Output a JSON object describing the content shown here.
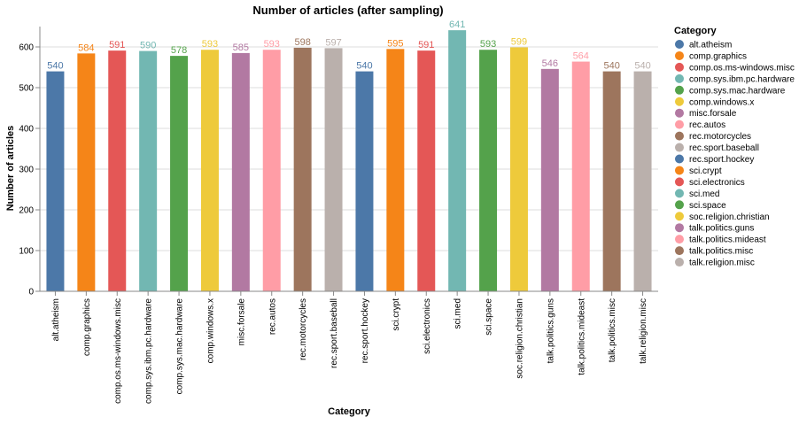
{
  "chart_data": {
    "type": "bar",
    "title": "Number of articles (after sampling)",
    "xlabel": "Category",
    "ylabel": "Number of articles",
    "ylim": [
      0,
      650
    ],
    "yticks": [
      0,
      100,
      200,
      300,
      400,
      500,
      600
    ],
    "grid": true,
    "legend_title": "Category",
    "legend_position": "right",
    "categories": [
      "alt.atheism",
      "comp.graphics",
      "comp.os.ms-windows.misc",
      "comp.sys.ibm.pc.hardware",
      "comp.sys.mac.hardware",
      "comp.windows.x",
      "misc.forsale",
      "rec.autos",
      "rec.motorcycles",
      "rec.sport.baseball",
      "rec.sport.hockey",
      "sci.crypt",
      "sci.electronics",
      "sci.med",
      "sci.space",
      "soc.religion.christian",
      "talk.politics.guns",
      "talk.politics.mideast",
      "talk.politics.misc",
      "talk.religion.misc"
    ],
    "values": [
      540,
      584,
      591,
      590,
      578,
      593,
      585,
      593,
      598,
      597,
      540,
      595,
      591,
      641,
      593,
      599,
      546,
      564,
      540,
      540
    ],
    "colors": [
      "#4c78a8",
      "#f58518",
      "#e45756",
      "#72b7b2",
      "#54a24b",
      "#eeca3b",
      "#b279a2",
      "#ff9da6",
      "#9d755d",
      "#bab0ac",
      "#4c78a8",
      "#f58518",
      "#e45756",
      "#72b7b2",
      "#54a24b",
      "#eeca3b",
      "#b279a2",
      "#ff9da6",
      "#9d755d",
      "#bab0ac"
    ]
  }
}
